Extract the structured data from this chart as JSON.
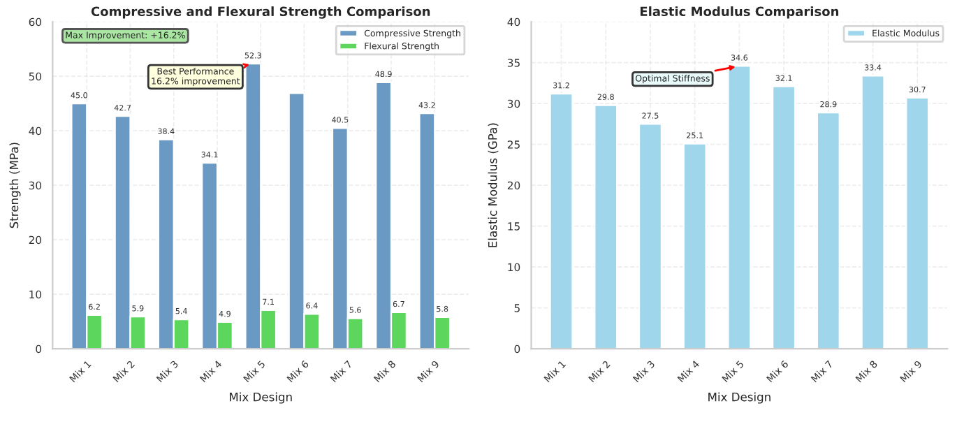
{
  "chart_data": [
    {
      "type": "bar",
      "title": "Compressive and Flexural Strength Comparison",
      "xlabel": "Mix Design",
      "ylabel": "Strength (MPa)",
      "categories": [
        "Mix 1",
        "Mix 2",
        "Mix 3",
        "Mix 4",
        "Mix 5",
        "Mix 6",
        "Mix 7",
        "Mix 8",
        "Mix 9"
      ],
      "series": [
        {
          "name": "Compressive Strength",
          "color": "#6a9ac4",
          "values": [
            45.0,
            42.7,
            38.4,
            34.1,
            52.3,
            46.9,
            40.5,
            48.9,
            43.2
          ],
          "value_labels": [
            "45.0",
            "42.7",
            "38.4",
            "34.1",
            "52.3",
            null,
            "40.5",
            "48.9",
            "43.2"
          ]
        },
        {
          "name": "Flexural Strength",
          "color": "#5cd65c",
          "values": [
            6.2,
            5.9,
            5.4,
            4.9,
            7.1,
            6.4,
            5.6,
            6.7,
            5.8
          ],
          "value_labels": [
            "6.2",
            "5.9",
            "5.4",
            "4.9",
            "7.1",
            "6.4",
            "5.6",
            "6.7",
            "5.8"
          ]
        }
      ],
      "ylim": [
        0,
        60
      ],
      "yticks": [
        0,
        10,
        20,
        30,
        40,
        50,
        60
      ],
      "grid": true,
      "legend": "top right",
      "annotations": [
        "Max Improvement: +16.2%",
        {
          "text": "Best Performance\n16.2% improvement",
          "x": "Mix 5",
          "y": 52.3
        }
      ]
    },
    {
      "type": "bar",
      "title": "Elastic Modulus Comparison",
      "xlabel": "Mix Design",
      "ylabel": "Elastic Modulus (GPa)",
      "categories": [
        "Mix 1",
        "Mix 2",
        "Mix 3",
        "Mix 4",
        "Mix 5",
        "Mix 6",
        "Mix 7",
        "Mix 8",
        "Mix 9"
      ],
      "series": [
        {
          "name": "Elastic Modulus",
          "color": "#9fd6ec",
          "values": [
            31.2,
            29.8,
            27.5,
            25.1,
            34.6,
            32.1,
            28.9,
            33.4,
            30.7
          ]
        }
      ],
      "data_labels": true,
      "ylim": [
        0,
        40
      ],
      "yticks": [
        0,
        5,
        10,
        15,
        20,
        25,
        30,
        35,
        40
      ],
      "grid": true,
      "legend": "top right",
      "annotations": [
        {
          "text": "Optimal Stiffness",
          "x": "Mix 5",
          "y": 34.6
        }
      ]
    }
  ]
}
